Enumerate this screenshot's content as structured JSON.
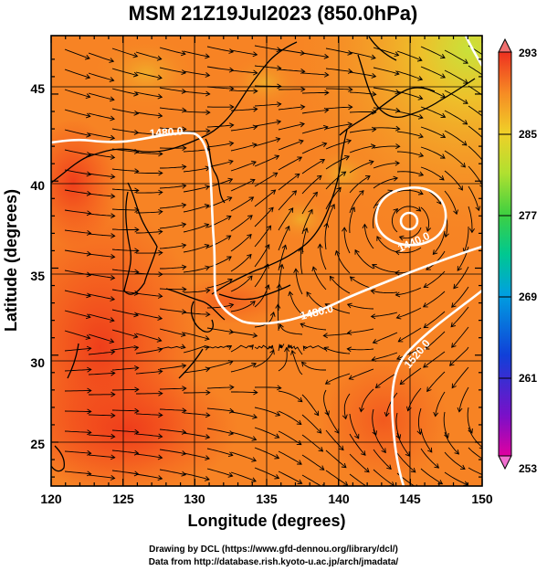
{
  "title": "MSM 21Z19Jul2023 (850.0hPa)",
  "xlabel": "Longitude (degrees)",
  "ylabel": "Latitude  (degrees)",
  "x_ticks": [
    "120",
    "125",
    "130",
    "135",
    "140",
    "145",
    "150"
  ],
  "y_ticks": [
    "25",
    "30",
    "35",
    "40",
    "45"
  ],
  "colorbar_labels": [
    "293",
    "285",
    "277",
    "269",
    "261",
    "253"
  ],
  "contour_labels": [
    "1480.0",
    "1480.0",
    "1440.0",
    "1520.0"
  ],
  "footer_line1": "Drawing by DCL (https://www.gfd-dennou.org/library/dcl/)",
  "footer_line2": "Data from http://database.rish.kyoto-u.ac.jp/arch/jmadata/",
  "colors": {
    "field_warm": "#f4471d",
    "field_mid": "#f78324",
    "field_cool": "#eec02a",
    "contour": "#ffffff",
    "streamline": "#000000"
  },
  "chart_data": {
    "type": "heatmap",
    "title": "MSM 21Z19Jul2023 (850.0hPa)",
    "xlabel": "Longitude (degrees)",
    "ylabel": "Latitude  (degrees)",
    "xlim": [
      120,
      150
    ],
    "ylim": [
      22.5,
      47.6
    ],
    "colorbar_range": [
      253,
      293
    ],
    "contour_levels": [
      1440,
      1480,
      1520
    ],
    "low_center": {
      "lon": 144.8,
      "lat": 37.8
    }
  }
}
